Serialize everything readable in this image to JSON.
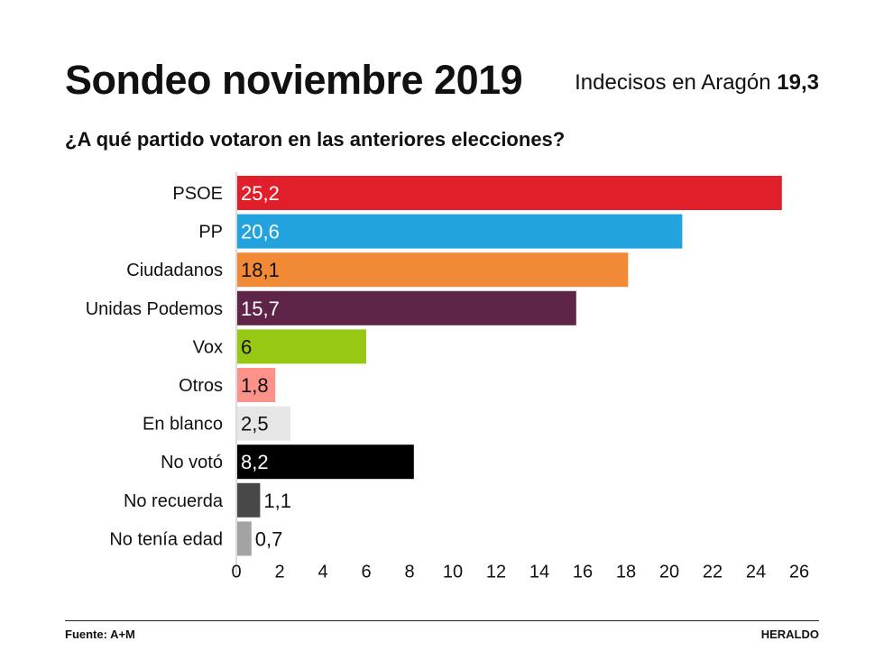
{
  "header": {
    "title": "Sondeo noviembre 2019",
    "undecided_label": "Indecisos en Aragón",
    "undecided_value": "19,3",
    "subtitle": "¿A qué partido votaron en las anteriores elecciones?"
  },
  "footer": {
    "source": "Fuente: A+M",
    "brand": "HERALDO"
  },
  "chart_data": {
    "type": "bar",
    "orientation": "horizontal",
    "title": "¿A qué partido votaron en las anteriores elecciones?",
    "xlabel": "",
    "ylabel": "",
    "xlim": [
      0,
      26
    ],
    "ticks": [
      0,
      2,
      4,
      6,
      8,
      10,
      12,
      14,
      16,
      18,
      20,
      22,
      24,
      26
    ],
    "categories": [
      "PSOE",
      "PP",
      "Ciudadanos",
      "Unidas Podemos",
      "Vox",
      "Otros",
      "En blanco",
      "No votó",
      "No recuerda",
      "No tenía edad"
    ],
    "values": [
      25.2,
      20.6,
      18.1,
      15.7,
      6,
      1.8,
      2.5,
      8.2,
      1.1,
      0.7
    ],
    "value_labels": [
      "25,2",
      "20,6",
      "18,1",
      "15,7",
      "6",
      "1,8",
      "2,5",
      "8,2",
      "1,1",
      "0,7"
    ],
    "colors": [
      "#e01f2a",
      "#22a3de",
      "#f18a36",
      "#5e2548",
      "#97c814",
      "#fc928a",
      "#e6e6e6",
      "#000000",
      "#484848",
      "#a3a3a3"
    ],
    "label_colors": [
      "#ffffff",
      "#ffffff",
      "#111111",
      "#ffffff",
      "#111111",
      "#111111",
      "#111111",
      "#ffffff",
      "#111111",
      "#111111"
    ],
    "grid": false
  }
}
